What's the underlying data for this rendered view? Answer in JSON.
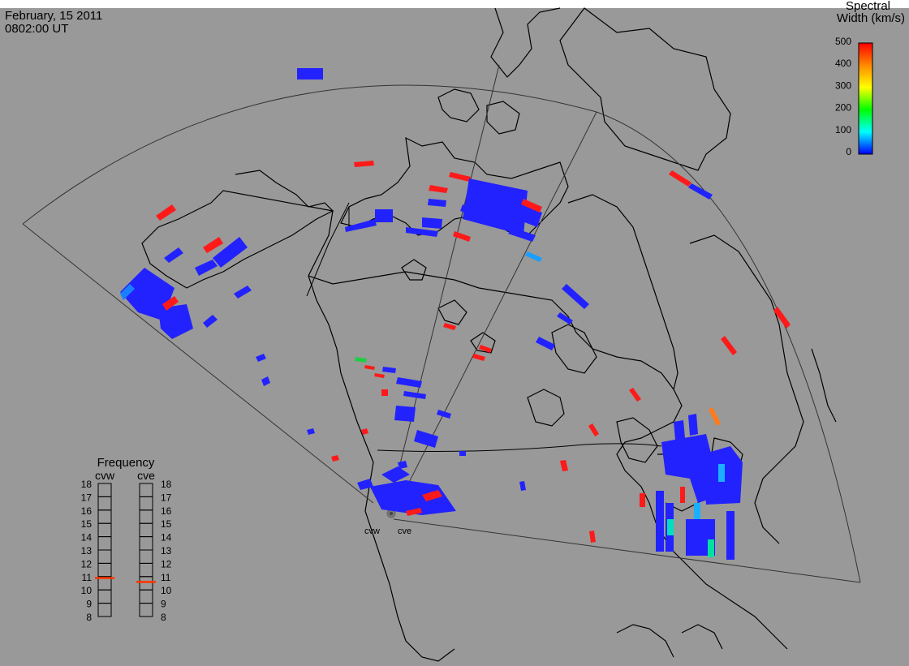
{
  "header": {
    "date": "February, 15 2011",
    "time": "0802:00 UT"
  },
  "colorbar": {
    "title_line1": "Spectral",
    "title_line2": "Width (km/s)",
    "ticks": [
      "500",
      "400",
      "300",
      "200",
      "100",
      "0"
    ]
  },
  "radars": {
    "west_label": "cvw",
    "east_label": "cve"
  },
  "frequency": {
    "title": "Frequency",
    "west_label": "cvw",
    "east_label": "cve",
    "ticks": [
      "18",
      "17",
      "16",
      "15",
      "14",
      "13",
      "12",
      "11",
      "10",
      "9",
      "8"
    ],
    "west_value_mhz": 10.9,
    "east_value_mhz": 10.6
  },
  "colors": {
    "background": "#999999",
    "low_width": "#1a1aff",
    "mid_width": "#00ccff",
    "high_width": "#ff1a1a"
  }
}
